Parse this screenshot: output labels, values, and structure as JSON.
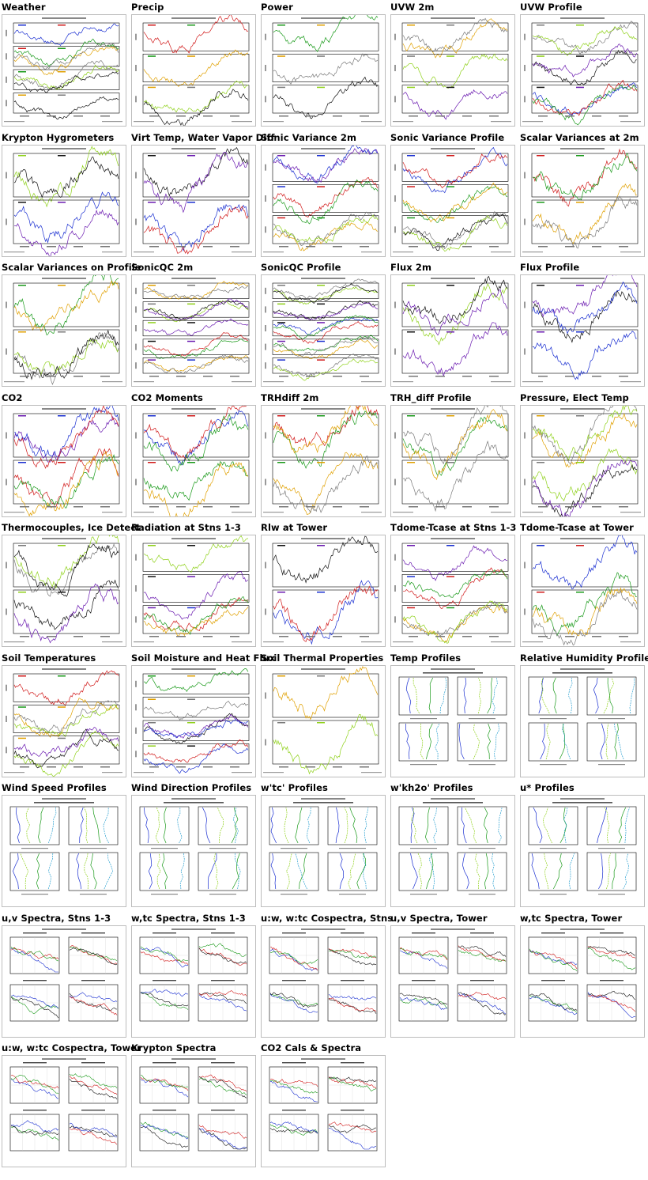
{
  "colors": {
    "series": [
      "#1a2fd1",
      "#d11a1a",
      "#1a9a1a",
      "#e0a000",
      "#7a7a7a",
      "#8fd11a",
      "#111111",
      "#6a1ab0"
    ]
  },
  "plots": [
    {
      "title": "Weather",
      "kind": "ts4"
    },
    {
      "title": "Precip",
      "kind": "ts3"
    },
    {
      "title": "Power",
      "kind": "ts3"
    },
    {
      "title": "UVW 2m",
      "kind": "ts3"
    },
    {
      "title": "UVW Profile",
      "kind": "ts3"
    },
    {
      "title": "Krypton Hygrometers",
      "kind": "ts2"
    },
    {
      "title": "Virt Temp, Water Vapor Diff",
      "kind": "ts2"
    },
    {
      "title": "Sonic Variance 2m",
      "kind": "ts3"
    },
    {
      "title": "Sonic Variance Profile",
      "kind": "ts3"
    },
    {
      "title": "Scalar Variances at 2m",
      "kind": "ts2"
    },
    {
      "title": "Scalar Variances on Profile",
      "kind": "ts2"
    },
    {
      "title": "SonicQC 2m",
      "kind": "ts5"
    },
    {
      "title": "SonicQC Profile",
      "kind": "ts5"
    },
    {
      "title": "Flux 2m",
      "kind": "ts2"
    },
    {
      "title": "Flux Profile",
      "kind": "ts2"
    },
    {
      "title": "CO2",
      "kind": "ts2"
    },
    {
      "title": "CO2 Moments",
      "kind": "ts2"
    },
    {
      "title": "TRHdiff 2m",
      "kind": "ts2"
    },
    {
      "title": "TRH_diff Profile",
      "kind": "ts2"
    },
    {
      "title": "Pressure, Elect Temp",
      "kind": "ts2"
    },
    {
      "title": "Thermocouples, Ice Detect",
      "kind": "ts2"
    },
    {
      "title": "Radiation at Stns 1-3",
      "kind": "ts3"
    },
    {
      "title": "Rlw at Tower",
      "kind": "ts2"
    },
    {
      "title": "Tdome-Tcase at Stns 1-3",
      "kind": "ts3"
    },
    {
      "title": "Tdome-Tcase at Tower",
      "kind": "ts2"
    },
    {
      "title": "Soil Temperatures",
      "kind": "ts3"
    },
    {
      "title": "Soil Moisture and Heat Flux",
      "kind": "ts4"
    },
    {
      "title": "Soil Thermal Properties",
      "kind": "ts2"
    },
    {
      "title": "Temp Profiles",
      "kind": "prof"
    },
    {
      "title": "Relative Humidity Profiles",
      "kind": "prof"
    },
    {
      "title": "Wind Speed Profiles",
      "kind": "prof"
    },
    {
      "title": "Wind Direction Profiles",
      "kind": "prof"
    },
    {
      "title": "w'tc' Profiles",
      "kind": "prof"
    },
    {
      "title": "w'kh2o' Profiles",
      "kind": "prof"
    },
    {
      "title": "u* Profiles",
      "kind": "prof"
    },
    {
      "title": "u,v Spectra, Stns 1-3",
      "kind": "spec"
    },
    {
      "title": "w,tc Spectra, Stns 1-3",
      "kind": "spec"
    },
    {
      "title": "u:w, w:tc Cospectra, Stns",
      "kind": "spec"
    },
    {
      "title": "u,v Spectra, Tower",
      "kind": "spec"
    },
    {
      "title": "w,tc Spectra, Tower",
      "kind": "spec"
    },
    {
      "title": "u:w, w:tc Cospectra, Tower",
      "kind": "spec"
    },
    {
      "title": "Krypton Spectra",
      "kind": "spec"
    },
    {
      "title": "CO2 Cals & Spectra",
      "kind": "spec"
    }
  ]
}
